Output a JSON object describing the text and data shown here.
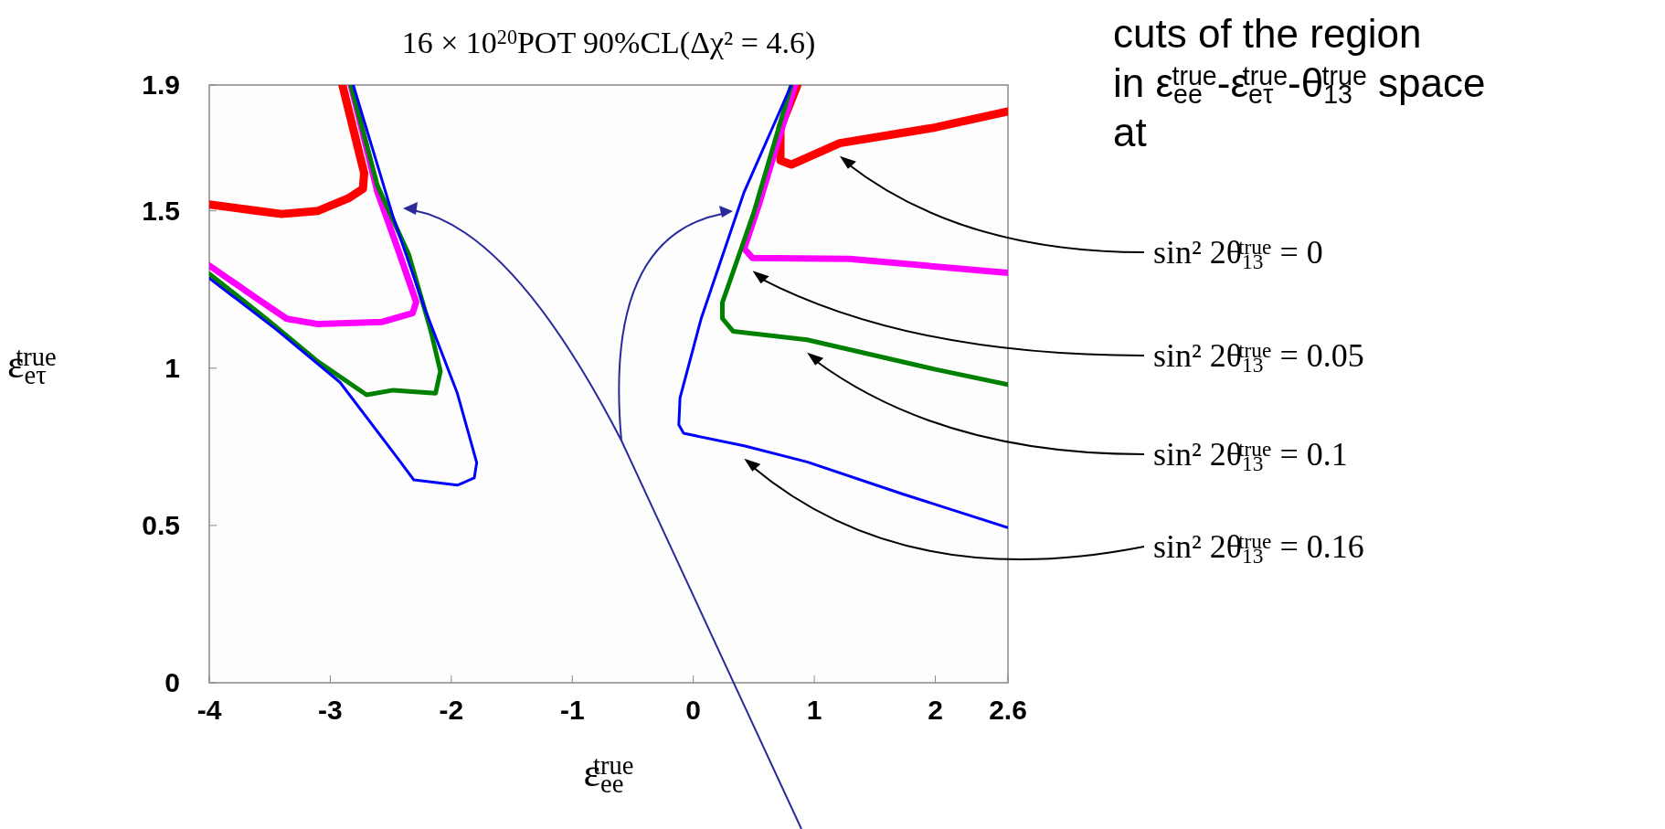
{
  "chart_data": {
    "type": "line",
    "title": "16 × 10$^{20}$POT    90%CL(Δχ² = 4.6)",
    "xlabel": "ε$_{ee}$$^{true}$",
    "ylabel": "ε$_{eτ}$$^{true}$",
    "annotations": [
      "cuts of the region in ε$_{ee}$$^{true}$-ε$_{eτ}$$^{true}$-θ$_{13}$$^{true}$ space at"
    ],
    "xlim": [
      -4,
      2.6
    ],
    "xticks": [
      -4,
      -3,
      -2,
      -1,
      0,
      1,
      2,
      2.6
    ],
    "ylim": [
      0,
      1.9
    ],
    "yticks": [
      0,
      0.5,
      1,
      1.5,
      1.9
    ],
    "grid": false,
    "legend": "right",
    "marker": "none",
    "line_style": "solid",
    "series": [
      {
        "name": "sin² 2θ$_{13}$$^{true}$ = 0",
        "color": "#ff0000",
        "x": [
          -4,
          -3.6,
          -3.4,
          -3.1,
          -2.85,
          -2.73,
          -2.72,
          -2.9,
          null,
          0.86,
          0.72,
          0.72,
          0.81,
          1.21,
          2.0,
          2.6
        ],
        "values": [
          1.52,
          1.5,
          1.49,
          1.5,
          1.54,
          1.57,
          1.62,
          1.9,
          null,
          1.9,
          1.765,
          1.66,
          1.647,
          1.715,
          1.765,
          1.816
        ]
      },
      {
        "name": "sin² 2θ$_{13}$$^{true}$ = 0.05",
        "color": "#ff00ff",
        "x": [
          -4,
          -3.62,
          -3.36,
          -3.1,
          -2.57,
          -2.32,
          -2.29,
          -2.44,
          -2.61,
          -2.83,
          null,
          0.84,
          0.55,
          0.42,
          0.49,
          1.29,
          2.6
        ],
        "values": [
          1.326,
          1.225,
          1.157,
          1.14,
          1.147,
          1.175,
          1.21,
          1.377,
          1.56,
          1.9,
          null,
          1.9,
          1.53,
          1.38,
          1.35,
          1.347,
          1.303
        ]
      },
      {
        "name": "sin² 2θ$_{13}$$^{true}$ = 0.1",
        "color": "#008000",
        "x": [
          -4,
          -3.53,
          -3.1,
          -2.7,
          -2.48,
          -2.13,
          -2.09,
          -2.17,
          -2.35,
          -2.61,
          -2.83,
          null,
          0.81,
          0.5,
          0.24,
          0.24,
          0.33,
          0.94,
          2.0,
          2.6
        ],
        "values": [
          1.3,
          1.157,
          1.02,
          0.915,
          0.93,
          0.92,
          0.99,
          1.12,
          1.36,
          1.58,
          1.9,
          null,
          1.9,
          1.495,
          1.208,
          1.158,
          1.117,
          1.09,
          0.996,
          0.948
        ]
      },
      {
        "name": "sin² 2θ$_{13}$$^{true}$ = 0.16",
        "color": "#0000ff",
        "x": [
          -4,
          -3.45,
          -2.92,
          -2.44,
          -2.31,
          -1.95,
          -1.81,
          -1.79,
          -1.95,
          -2.22,
          -2.48,
          -2.81,
          null,
          0.81,
          0.42,
          0.065,
          -0.11,
          -0.12,
          -0.08,
          0.42,
          0.94,
          1.73,
          2.6
        ],
        "values": [
          1.286,
          1.124,
          0.955,
          0.712,
          0.645,
          0.628,
          0.651,
          0.7,
          0.92,
          1.19,
          1.48,
          1.9,
          null,
          1.9,
          1.56,
          1.158,
          0.905,
          0.82,
          0.793,
          0.753,
          0.702,
          0.6,
          0.493
        ]
      }
    ]
  }
}
